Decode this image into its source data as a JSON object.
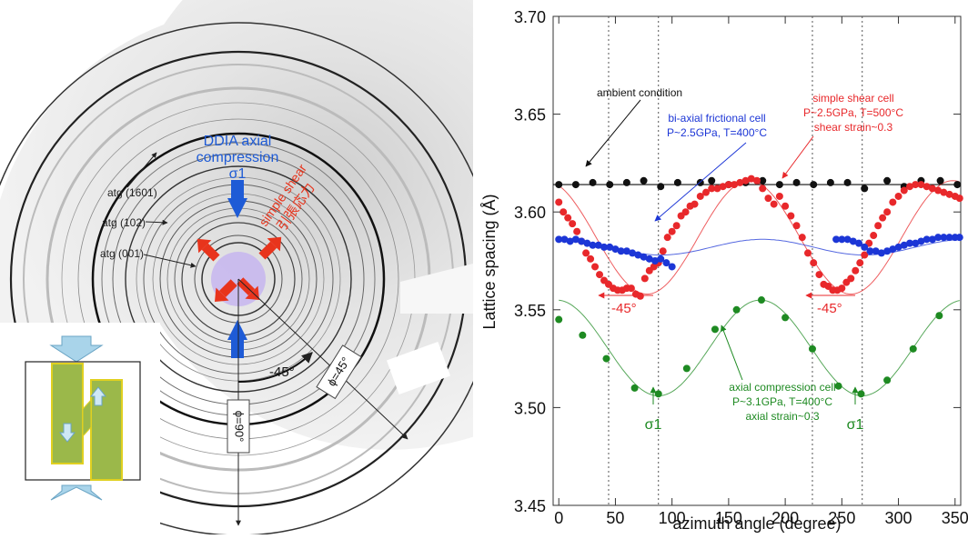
{
  "diffraction": {
    "ring_labels": [
      "atg (1601)",
      "atg (102)",
      "atg (001)"
    ],
    "ddia_lines": [
      "DDIA axial",
      "compression",
      "σ1"
    ],
    "shear_label": "simple shear",
    "shear_cjk": "引張応力",
    "angle_label": "-45°",
    "phi45": "ϕ=45°",
    "phi90": "ϕ=90°",
    "colors": {
      "compression": "#1e5bd6",
      "shear": "#e8341c",
      "inset_block": "#9bb84a",
      "inset_arrow": "#a9d4ea"
    }
  },
  "chart_data": {
    "type": "scatter",
    "xlabel": "azimuth angle (degree)",
    "ylabel": "Lattice spacing (Å)",
    "xlim": [
      0,
      355
    ],
    "ylim": [
      3.45,
      3.7
    ],
    "xticks": [
      0,
      50,
      100,
      150,
      200,
      250,
      300,
      350
    ],
    "yticks": [
      3.45,
      3.5,
      3.55,
      3.6,
      3.65,
      3.7
    ],
    "ytick_labels": [
      "3.45",
      "3.50",
      "3.55",
      "3.60",
      "3.65",
      "3.70"
    ],
    "vlines": [
      44,
      88,
      224,
      268
    ],
    "series": [
      {
        "color": "#111111",
        "points": [
          [
            0,
            3.614
          ],
          [
            15,
            3.614
          ],
          [
            30,
            3.615
          ],
          [
            45,
            3.614
          ],
          [
            60,
            3.615
          ],
          [
            75,
            3.616
          ],
          [
            90,
            3.613
          ],
          [
            105,
            3.615
          ],
          [
            125,
            3.615
          ],
          [
            135,
            3.616
          ],
          [
            150,
            3.614
          ],
          [
            165,
            3.615
          ],
          [
            180,
            3.616
          ],
          [
            195,
            3.614
          ],
          [
            210,
            3.615
          ],
          [
            225,
            3.614
          ],
          [
            240,
            3.615
          ],
          [
            255,
            3.615
          ],
          [
            270,
            3.612
          ],
          [
            290,
            3.616
          ],
          [
            305,
            3.613
          ],
          [
            320,
            3.616
          ],
          [
            337,
            3.616
          ],
          [
            352,
            3.614
          ]
        ],
        "fit": {
          "type": "line",
          "y": 3.614
        }
      },
      {
        "color": "#e8282b",
        "points": [
          [
            0,
            3.605
          ],
          [
            4,
            3.6
          ],
          [
            8,
            3.597
          ],
          [
            12,
            3.594
          ],
          [
            16,
            3.59
          ],
          [
            20,
            3.585
          ],
          [
            24,
            3.579
          ],
          [
            28,
            3.576
          ],
          [
            32,
            3.572
          ],
          [
            36,
            3.568
          ],
          [
            40,
            3.565
          ],
          [
            44,
            3.563
          ],
          [
            48,
            3.561
          ],
          [
            52,
            3.56
          ],
          [
            56,
            3.56
          ],
          [
            60,
            3.561
          ],
          [
            64,
            3.561
          ],
          [
            68,
            3.558
          ],
          [
            72,
            3.557
          ],
          [
            76,
            3.566
          ],
          [
            80,
            3.57
          ],
          [
            84,
            3.572
          ],
          [
            88,
            3.574
          ],
          [
            92,
            3.58
          ],
          [
            96,
            3.587
          ],
          [
            100,
            3.59
          ],
          [
            104,
            3.593
          ],
          [
            108,
            3.598
          ],
          [
            112,
            3.6
          ],
          [
            116,
            3.603
          ],
          [
            120,
            3.604
          ],
          [
            125,
            3.608
          ],
          [
            130,
            3.61
          ],
          [
            135,
            3.612
          ],
          [
            140,
            3.612
          ],
          [
            145,
            3.613
          ],
          [
            150,
            3.614
          ],
          [
            155,
            3.614
          ],
          [
            160,
            3.615
          ],
          [
            165,
            3.616
          ],
          [
            170,
            3.617
          ],
          [
            175,
            3.616
          ],
          [
            180,
            3.612
          ],
          [
            185,
            3.607
          ],
          [
            190,
            3.604
          ],
          [
            195,
            3.608
          ],
          [
            200,
            3.603
          ],
          [
            205,
            3.598
          ],
          [
            210,
            3.593
          ],
          [
            215,
            3.587
          ],
          [
            220,
            3.579
          ],
          [
            225,
            3.574
          ],
          [
            230,
            3.568
          ],
          [
            234,
            3.563
          ],
          [
            238,
            3.562
          ],
          [
            242,
            3.56
          ],
          [
            246,
            3.56
          ],
          [
            250,
            3.561
          ],
          [
            254,
            3.564
          ],
          [
            258,
            3.566
          ],
          [
            262,
            3.57
          ],
          [
            266,
            3.574
          ],
          [
            270,
            3.578
          ],
          [
            274,
            3.584
          ],
          [
            278,
            3.588
          ],
          [
            282,
            3.593
          ],
          [
            286,
            3.597
          ],
          [
            290,
            3.6
          ],
          [
            295,
            3.605
          ],
          [
            300,
            3.608
          ],
          [
            305,
            3.611
          ],
          [
            310,
            3.613
          ],
          [
            315,
            3.614
          ],
          [
            320,
            3.614
          ],
          [
            325,
            3.613
          ],
          [
            330,
            3.612
          ],
          [
            335,
            3.611
          ],
          [
            340,
            3.61
          ],
          [
            345,
            3.609
          ],
          [
            350,
            3.608
          ],
          [
            354,
            3.607
          ]
        ],
        "fit": {
          "type": "cos",
          "mean": 3.587,
          "amp": 0.029,
          "phase": 168,
          "range": [
            0,
            355
          ]
        }
      },
      {
        "color": "#1c36d6",
        "points": [
          [
            0,
            3.586
          ],
          [
            5,
            3.586
          ],
          [
            10,
            3.585
          ],
          [
            15,
            3.586
          ],
          [
            20,
            3.585
          ],
          [
            25,
            3.584
          ],
          [
            30,
            3.583
          ],
          [
            35,
            3.583
          ],
          [
            40,
            3.582
          ],
          [
            45,
            3.582
          ],
          [
            50,
            3.581
          ],
          [
            55,
            3.58
          ],
          [
            60,
            3.58
          ],
          [
            65,
            3.579
          ],
          [
            70,
            3.578
          ],
          [
            75,
            3.577
          ],
          [
            80,
            3.576
          ],
          [
            85,
            3.575
          ],
          [
            90,
            3.576
          ],
          [
            95,
            3.574
          ],
          [
            100,
            3.572
          ],
          [
            245,
            3.586
          ],
          [
            250,
            3.586
          ],
          [
            255,
            3.586
          ],
          [
            260,
            3.585
          ],
          [
            265,
            3.584
          ],
          [
            270,
            3.582
          ],
          [
            275,
            3.58
          ],
          [
            280,
            3.58
          ],
          [
            285,
            3.579
          ],
          [
            290,
            3.58
          ],
          [
            295,
            3.581
          ],
          [
            300,
            3.582
          ],
          [
            305,
            3.583
          ],
          [
            310,
            3.584
          ],
          [
            315,
            3.584
          ],
          [
            320,
            3.585
          ],
          [
            325,
            3.586
          ],
          [
            330,
            3.586
          ],
          [
            335,
            3.587
          ],
          [
            340,
            3.587
          ],
          [
            345,
            3.587
          ],
          [
            350,
            3.587
          ],
          [
            354,
            3.587
          ]
        ],
        "fit": {
          "type": "cos",
          "mean": 3.582,
          "amp": 0.004,
          "phase": 0,
          "range": [
            0,
            355
          ]
        }
      },
      {
        "color": "#1e8a22",
        "points": [
          [
            0,
            3.545
          ],
          [
            21,
            3.537
          ],
          [
            42,
            3.525
          ],
          [
            67,
            3.51
          ],
          [
            88,
            3.507
          ],
          [
            113,
            3.52
          ],
          [
            138,
            3.54
          ],
          [
            157,
            3.55
          ],
          [
            179,
            3.555
          ],
          [
            200,
            3.546
          ],
          [
            224,
            3.53
          ],
          [
            247,
            3.511
          ],
          [
            267,
            3.507
          ],
          [
            290,
            3.514
          ],
          [
            313,
            3.53
          ],
          [
            336,
            3.547
          ]
        ],
        "fit": {
          "type": "cos",
          "mean": 3.5305,
          "amp": 0.0245,
          "phase": 178,
          "range": [
            0,
            355
          ]
        }
      }
    ],
    "annotations": [
      {
        "lines": [
          "ambient condition"
        ],
        "color": "#111111"
      },
      {
        "lines": [
          "bi-axial frictional cell",
          "P~2.5GPa, T=400°C"
        ],
        "color": "#1c36d6"
      },
      {
        "lines": [
          "simple shear cell",
          "P~2.5GPa, T=500°C",
          "shear strain~0.3"
        ],
        "color": "#e8282b"
      },
      {
        "lines": [
          "axial compression cell",
          "P~3.1GPa, T=400°C",
          "axial strain~0.3"
        ],
        "color": "#1e8a22"
      },
      {
        "lines": [
          "-45°"
        ],
        "color": "#e8282b"
      },
      {
        "lines": [
          "-45°"
        ],
        "color": "#e8282b"
      },
      {
        "lines": [
          "σ1"
        ],
        "color": "#1e8a22"
      },
      {
        "lines": [
          "σ1"
        ],
        "color": "#1e8a22"
      }
    ]
  }
}
